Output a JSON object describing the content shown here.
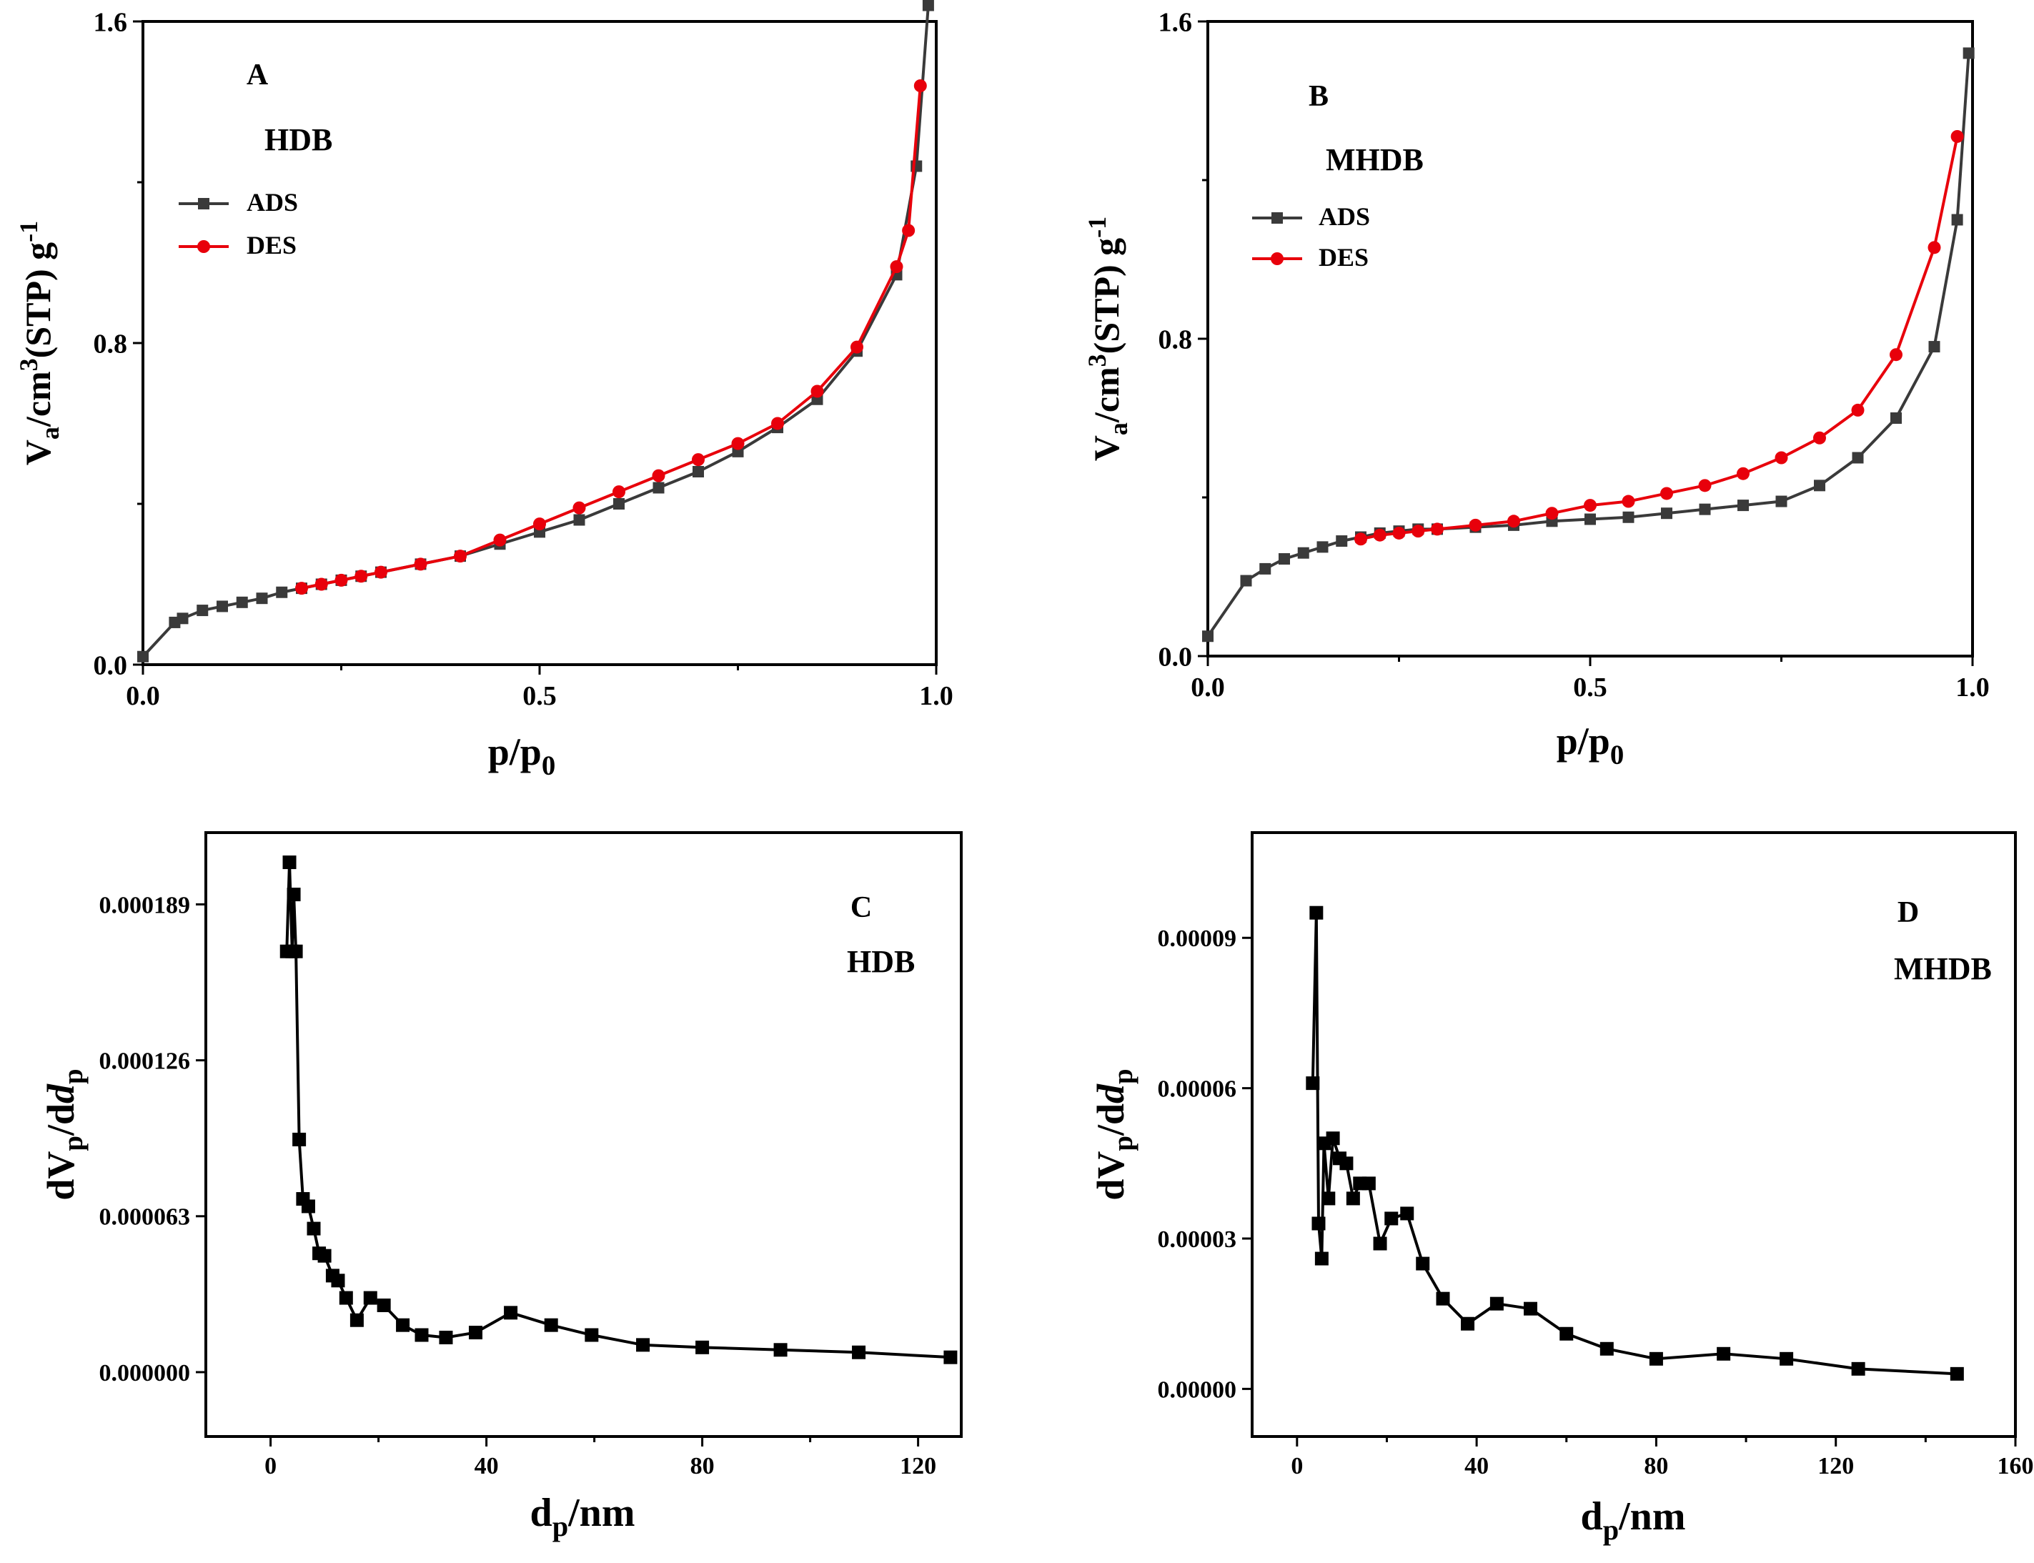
{
  "colors": {
    "ads": "#3a3a3a",
    "des": "#e8000b",
    "psd": "#000000",
    "axis": "#000000"
  },
  "chart_data": [
    {
      "id": "A",
      "type": "line",
      "panel_label": "A",
      "sample_label": "HDB",
      "xlabel": {
        "main": "p/p",
        "sub": "0"
      },
      "ylabel": {
        "main": "V",
        "sub": "a",
        "mid": "/cm",
        "sup": "3",
        "rest": "(STP) g",
        "sup2": "-1"
      },
      "xlim": [
        0,
        1.0
      ],
      "ylim": [
        0,
        1.6
      ],
      "xticks": [
        0,
        0.5,
        1.0
      ],
      "xtick_labels": [
        "0.0",
        "0.5",
        "1.0"
      ],
      "yticks": [
        0,
        0.8,
        1.6
      ],
      "ytick_labels": [
        "0.0",
        "0.8",
        "1.6"
      ],
      "xminor": [
        0.25,
        0.75
      ],
      "yminor": [
        0.4,
        1.2
      ],
      "legend": {
        "position": "top-left"
      },
      "series": [
        {
          "name": "ADS",
          "color": "#3a3a3a",
          "marker": "square",
          "x": [
            0.0,
            0.04,
            0.05,
            0.075,
            0.1,
            0.125,
            0.15,
            0.175,
            0.2,
            0.225,
            0.25,
            0.275,
            0.3,
            0.35,
            0.4,
            0.45,
            0.5,
            0.55,
            0.6,
            0.65,
            0.7,
            0.75,
            0.8,
            0.85,
            0.9,
            0.95,
            0.975,
            0.99
          ],
          "y": [
            0.02,
            0.105,
            0.115,
            0.135,
            0.145,
            0.155,
            0.165,
            0.18,
            0.19,
            0.2,
            0.21,
            0.22,
            0.23,
            0.25,
            0.27,
            0.3,
            0.33,
            0.36,
            0.4,
            0.44,
            0.48,
            0.53,
            0.59,
            0.66,
            0.78,
            0.97,
            1.24,
            1.64
          ]
        },
        {
          "name": "DES",
          "color": "#e8000b",
          "marker": "circle",
          "x": [
            0.2,
            0.225,
            0.25,
            0.275,
            0.3,
            0.35,
            0.4,
            0.45,
            0.5,
            0.55,
            0.6,
            0.65,
            0.7,
            0.75,
            0.8,
            0.85,
            0.9,
            0.95,
            0.965,
            0.98
          ],
          "y": [
            0.19,
            0.2,
            0.21,
            0.22,
            0.23,
            0.25,
            0.27,
            0.31,
            0.35,
            0.39,
            0.43,
            0.47,
            0.51,
            0.55,
            0.6,
            0.68,
            0.79,
            0.99,
            1.08,
            1.44
          ]
        }
      ]
    },
    {
      "id": "B",
      "type": "line",
      "panel_label": "B",
      "sample_label": "MHDB",
      "xlabel": {
        "main": "p/p",
        "sub": "0"
      },
      "ylabel": {
        "main": "V",
        "sub": "a",
        "mid": "/cm",
        "sup": "3",
        "rest": "(STP) g",
        "sup2": "-1"
      },
      "xlim": [
        0,
        1.0
      ],
      "ylim": [
        0,
        1.6
      ],
      "xticks": [
        0,
        0.5,
        1.0
      ],
      "xtick_labels": [
        "0.0",
        "0.5",
        "1.0"
      ],
      "yticks": [
        0,
        0.8,
        1.6
      ],
      "ytick_labels": [
        "0.0",
        "0.8",
        "1.6"
      ],
      "xminor": [
        0.25,
        0.75
      ],
      "yminor": [
        0.4,
        1.2
      ],
      "legend": {
        "position": "top-left"
      },
      "series": [
        {
          "name": "ADS",
          "color": "#3a3a3a",
          "marker": "square",
          "x": [
            0.0,
            0.05,
            0.075,
            0.1,
            0.125,
            0.15,
            0.175,
            0.2,
            0.225,
            0.25,
            0.275,
            0.3,
            0.35,
            0.4,
            0.45,
            0.5,
            0.55,
            0.6,
            0.65,
            0.7,
            0.75,
            0.8,
            0.85,
            0.9,
            0.95,
            0.98,
            0.995
          ],
          "y": [
            0.05,
            0.19,
            0.22,
            0.245,
            0.26,
            0.275,
            0.29,
            0.3,
            0.31,
            0.315,
            0.32,
            0.32,
            0.325,
            0.33,
            0.34,
            0.345,
            0.35,
            0.36,
            0.37,
            0.38,
            0.39,
            0.43,
            0.5,
            0.6,
            0.78,
            1.1,
            1.52
          ]
        },
        {
          "name": "DES",
          "color": "#e8000b",
          "marker": "circle",
          "x": [
            0.2,
            0.225,
            0.25,
            0.275,
            0.3,
            0.35,
            0.4,
            0.45,
            0.5,
            0.55,
            0.6,
            0.65,
            0.7,
            0.75,
            0.8,
            0.85,
            0.9,
            0.95,
            0.98
          ],
          "y": [
            0.295,
            0.305,
            0.31,
            0.315,
            0.32,
            0.33,
            0.34,
            0.36,
            0.38,
            0.39,
            0.41,
            0.43,
            0.46,
            0.5,
            0.55,
            0.62,
            0.76,
            1.03,
            1.31
          ]
        }
      ]
    },
    {
      "id": "C",
      "type": "line",
      "panel_label": "C",
      "sample_label": "HDB",
      "xlabel": {
        "main": "d",
        "sub": "p",
        "rest": "/nm"
      },
      "ylabel": {
        "main": "dV",
        "sub": "p",
        "mid": "/d",
        "italic": "d",
        "sub2": "p"
      },
      "xlim": [
        -12,
        128
      ],
      "ylim": [
        -2.6e-05,
        0.000218
      ],
      "xticks": [
        0,
        40,
        80,
        120
      ],
      "xtick_labels": [
        "0",
        "40",
        "80",
        "120"
      ],
      "yticks": [
        0,
        6.3e-05,
        0.000126,
        0.000189
      ],
      "ytick_labels": [
        "0.000000",
        "0.000063",
        "0.000126",
        "0.000189"
      ],
      "xminor": [
        20,
        60,
        100
      ],
      "yminor": [],
      "series": [
        {
          "name": "",
          "color": "#000000",
          "marker": "square",
          "x": [
            3.0,
            3.5,
            4.0,
            4.3,
            4.7,
            5.3,
            6.0,
            7.0,
            8.0,
            9.0,
            10.0,
            11.5,
            12.5,
            14.0,
            16.0,
            18.5,
            21.0,
            24.5,
            28.0,
            32.5,
            38.0,
            44.5,
            52.0,
            59.5,
            69.0,
            80.0,
            94.5,
            109.0,
            126.0
          ],
          "y": [
            0.00017,
            0.000206,
            0.00017,
            0.000193,
            0.00017,
            9.4e-05,
            7e-05,
            6.7e-05,
            5.8e-05,
            4.8e-05,
            4.7e-05,
            3.9e-05,
            3.7e-05,
            3e-05,
            2.1e-05,
            3e-05,
            2.7e-05,
            1.9e-05,
            1.5e-05,
            1.4e-05,
            1.6e-05,
            2.4e-05,
            1.9e-05,
            1.5e-05,
            1.1e-05,
            1e-05,
            9e-06,
            8e-06,
            6e-06
          ]
        }
      ]
    },
    {
      "id": "D",
      "type": "line",
      "panel_label": "D",
      "sample_label": "MHDB",
      "xlabel": {
        "main": "d",
        "sub": "p",
        "rest": "/nm"
      },
      "ylabel": {
        "main": "dV",
        "sub": "p",
        "mid": "/d",
        "italic": "d",
        "sub2": "p"
      },
      "xlim": [
        -10,
        160
      ],
      "ylim": [
        -9.5e-06,
        0.000111
      ],
      "xticks": [
        0,
        40,
        80,
        120,
        160
      ],
      "xtick_labels": [
        "0",
        "40",
        "80",
        "120",
        "160"
      ],
      "xminor": [
        20,
        60,
        100,
        140
      ],
      "yminor": [],
      "yticks": [
        0,
        3e-05,
        6e-05,
        9e-05
      ],
      "ytick_labels": [
        "0.00000",
        "0.00003",
        "0.00006",
        "0.00009"
      ],
      "series": [
        {
          "name": "",
          "color": "#000000",
          "marker": "square",
          "x": [
            3.5,
            4.3,
            4.8,
            5.5,
            6.0,
            7.0,
            8.0,
            9.5,
            11.0,
            12.5,
            14.0,
            16.0,
            18.5,
            21.0,
            24.5,
            28.0,
            32.5,
            38.0,
            44.5,
            52.0,
            60.0,
            69.0,
            80.0,
            95.0,
            109.0,
            125.0,
            147.0
          ],
          "y": [
            6.1e-05,
            9.5e-05,
            3.3e-05,
            2.6e-05,
            4.9e-05,
            3.8e-05,
            5e-05,
            4.6e-05,
            4.5e-05,
            3.8e-05,
            4.1e-05,
            4.1e-05,
            2.9e-05,
            3.4e-05,
            3.5e-05,
            2.5e-05,
            1.8e-05,
            1.3e-05,
            1.7e-05,
            1.6e-05,
            1.1e-05,
            8e-06,
            6e-06,
            7e-06,
            6e-06,
            4e-06,
            3e-06
          ]
        }
      ]
    }
  ]
}
